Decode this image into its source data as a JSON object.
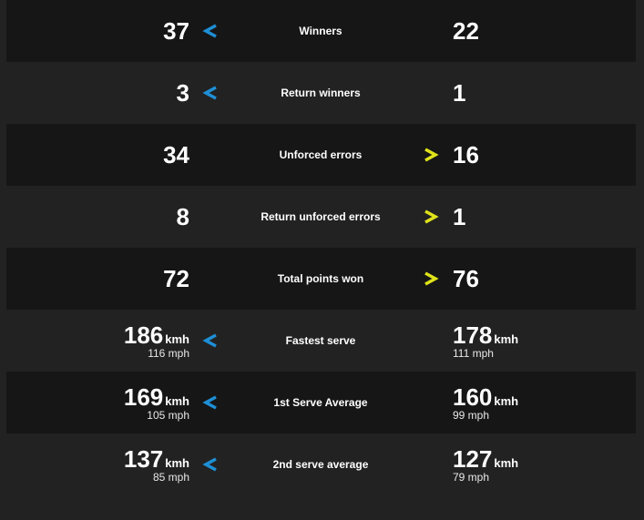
{
  "colors": {
    "left_arrow": "#1e8fd6",
    "right_arrow": "#dfe31a"
  },
  "rows": [
    {
      "label": "Winners",
      "left": "37",
      "right": "22",
      "arrow": "left"
    },
    {
      "label": "Return winners",
      "left": "3",
      "right": "1",
      "arrow": "left"
    },
    {
      "label": "Unforced errors",
      "left": "34",
      "right": "16",
      "arrow": "right"
    },
    {
      "label": "Return unforced errors",
      "left": "8",
      "right": "1",
      "arrow": "right"
    },
    {
      "label": "Total points won",
      "left": "72",
      "right": "76",
      "arrow": "right"
    },
    {
      "label": "Fastest serve",
      "left": "186",
      "left_unit": "kmh",
      "left_sub": "116 mph",
      "right": "178",
      "right_unit": "kmh",
      "right_sub": "111 mph",
      "arrow": "left"
    },
    {
      "label": "1st Serve Average",
      "left": "169",
      "left_unit": "kmh",
      "left_sub": "105 mph",
      "right": "160",
      "right_unit": "kmh",
      "right_sub": "99 mph",
      "arrow": "left"
    },
    {
      "label": "2nd serve average",
      "left": "137",
      "left_unit": "kmh",
      "left_sub": "85 mph",
      "right": "127",
      "right_unit": "kmh",
      "right_sub": "79 mph",
      "arrow": "left"
    }
  ]
}
